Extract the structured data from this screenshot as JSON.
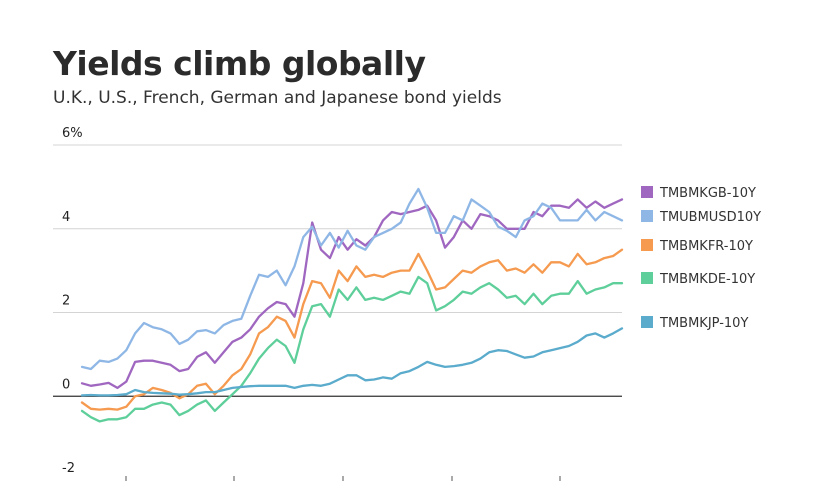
{
  "title": "Yields climb globally",
  "subtitle": "U.K., U.S., French, German and Japanese bond yields",
  "chart_data": {
    "type": "line",
    "title": "Yields climb globally",
    "subtitle": "U.K., U.S., French, German and Japanese bond yields",
    "xlabel": "",
    "ylabel": "",
    "ylim": [
      -2,
      6
    ],
    "yticks": [
      -2,
      0,
      2,
      4,
      6
    ],
    "ytick_labels": [
      "-2",
      "0",
      "2",
      "4",
      "6%"
    ],
    "grid": true,
    "legend_position": "right",
    "series": [
      {
        "name": "TMBMKGB-10Y",
        "color": "#a067c0",
        "values": [
          0.31,
          0.25,
          0.28,
          0.32,
          0.2,
          0.35,
          0.82,
          0.85,
          0.85,
          0.8,
          0.75,
          0.6,
          0.65,
          0.94,
          1.05,
          0.8,
          1.05,
          1.3,
          1.4,
          1.6,
          1.9,
          2.1,
          2.25,
          2.2,
          1.9,
          2.7,
          4.15,
          3.5,
          3.3,
          3.8,
          3.5,
          3.75,
          3.6,
          3.8,
          4.2,
          4.4,
          4.35,
          4.4,
          4.45,
          4.55,
          4.2,
          3.55,
          3.8,
          4.2,
          4.0,
          4.35,
          4.3,
          4.2,
          4.0,
          4.0,
          4.0,
          4.4,
          4.3,
          4.55,
          4.55,
          4.5,
          4.7,
          4.5,
          4.65,
          4.5,
          4.6,
          4.7
        ]
      },
      {
        "name": "TMUBMUSD10Y",
        "color": "#8fb7e6",
        "values": [
          0.7,
          0.65,
          0.85,
          0.82,
          0.9,
          1.1,
          1.5,
          1.75,
          1.65,
          1.6,
          1.5,
          1.25,
          1.35,
          1.55,
          1.58,
          1.5,
          1.7,
          1.8,
          1.85,
          2.4,
          2.9,
          2.85,
          3.0,
          2.65,
          3.1,
          3.8,
          4.05,
          3.6,
          3.9,
          3.55,
          3.95,
          3.6,
          3.5,
          3.8,
          3.9,
          4.0,
          4.15,
          4.6,
          4.95,
          4.5,
          3.9,
          3.9,
          4.3,
          4.2,
          4.7,
          4.55,
          4.4,
          4.05,
          3.95,
          3.8,
          4.2,
          4.3,
          4.6,
          4.5,
          4.2,
          4.2,
          4.2,
          4.45,
          4.2,
          4.4,
          4.3,
          4.2
        ]
      },
      {
        "name": "TMBMKFR-10Y",
        "color": "#f59a4f",
        "values": [
          -0.15,
          -0.3,
          -0.32,
          -0.3,
          -0.32,
          -0.25,
          0.0,
          0.05,
          0.2,
          0.15,
          0.08,
          -0.05,
          0.05,
          0.25,
          0.3,
          0.05,
          0.25,
          0.5,
          0.65,
          1.0,
          1.5,
          1.65,
          1.9,
          1.8,
          1.4,
          2.2,
          2.75,
          2.7,
          2.35,
          3.0,
          2.75,
          3.1,
          2.85,
          2.9,
          2.85,
          2.95,
          3.0,
          3.0,
          3.4,
          3.0,
          2.55,
          2.6,
          2.8,
          3.0,
          2.95,
          3.1,
          3.2,
          3.25,
          3.0,
          3.05,
          2.95,
          3.15,
          2.95,
          3.2,
          3.2,
          3.1,
          3.4,
          3.15,
          3.2,
          3.3,
          3.35,
          3.5
        ]
      },
      {
        "name": "TMBMKDE-10Y",
        "color": "#5ecf9a",
        "values": [
          -0.35,
          -0.5,
          -0.6,
          -0.55,
          -0.55,
          -0.5,
          -0.3,
          -0.3,
          -0.2,
          -0.15,
          -0.2,
          -0.45,
          -0.35,
          -0.2,
          -0.1,
          -0.35,
          -0.15,
          0.05,
          0.25,
          0.55,
          0.9,
          1.15,
          1.35,
          1.2,
          0.8,
          1.6,
          2.15,
          2.2,
          1.9,
          2.55,
          2.3,
          2.6,
          2.3,
          2.35,
          2.3,
          2.4,
          2.5,
          2.45,
          2.85,
          2.7,
          2.05,
          2.15,
          2.3,
          2.5,
          2.45,
          2.6,
          2.7,
          2.55,
          2.35,
          2.4,
          2.2,
          2.45,
          2.2,
          2.4,
          2.45,
          2.45,
          2.75,
          2.45,
          2.55,
          2.6,
          2.7,
          2.7
        ]
      },
      {
        "name": "TMBMKJP-10Y",
        "color": "#5aabcc",
        "values": [
          0.02,
          0.03,
          0.02,
          0.02,
          0.03,
          0.05,
          0.15,
          0.1,
          0.08,
          0.07,
          0.06,
          0.04,
          0.05,
          0.07,
          0.1,
          0.1,
          0.15,
          0.2,
          0.22,
          0.24,
          0.25,
          0.25,
          0.25,
          0.25,
          0.2,
          0.25,
          0.27,
          0.25,
          0.3,
          0.4,
          0.5,
          0.5,
          0.38,
          0.4,
          0.45,
          0.42,
          0.55,
          0.6,
          0.7,
          0.82,
          0.75,
          0.7,
          0.72,
          0.75,
          0.8,
          0.9,
          1.05,
          1.1,
          1.08,
          1.0,
          0.92,
          0.95,
          1.05,
          1.1,
          1.15,
          1.2,
          1.3,
          1.45,
          1.5,
          1.4,
          1.5,
          1.62
        ]
      }
    ]
  }
}
